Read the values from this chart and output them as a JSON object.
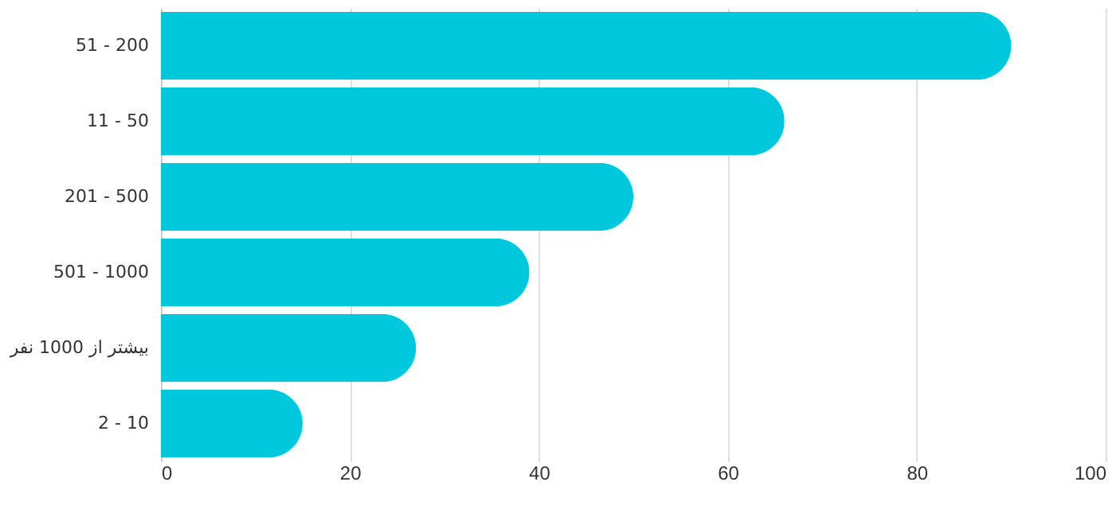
{
  "chart_data": {
    "type": "bar",
    "orientation": "horizontal",
    "categories": [
      "51 - 200",
      "11 - 50",
      "201 - 500",
      "501 - 1000",
      "بیشتر از 1000 نفر",
      "2 - 10"
    ],
    "values": [
      90,
      66,
      50,
      39,
      27,
      15
    ],
    "color": "#00c8dc",
    "xlim": [
      0,
      100
    ],
    "xticks": [
      0,
      20,
      40,
      60,
      80,
      100
    ],
    "grid": "x"
  }
}
